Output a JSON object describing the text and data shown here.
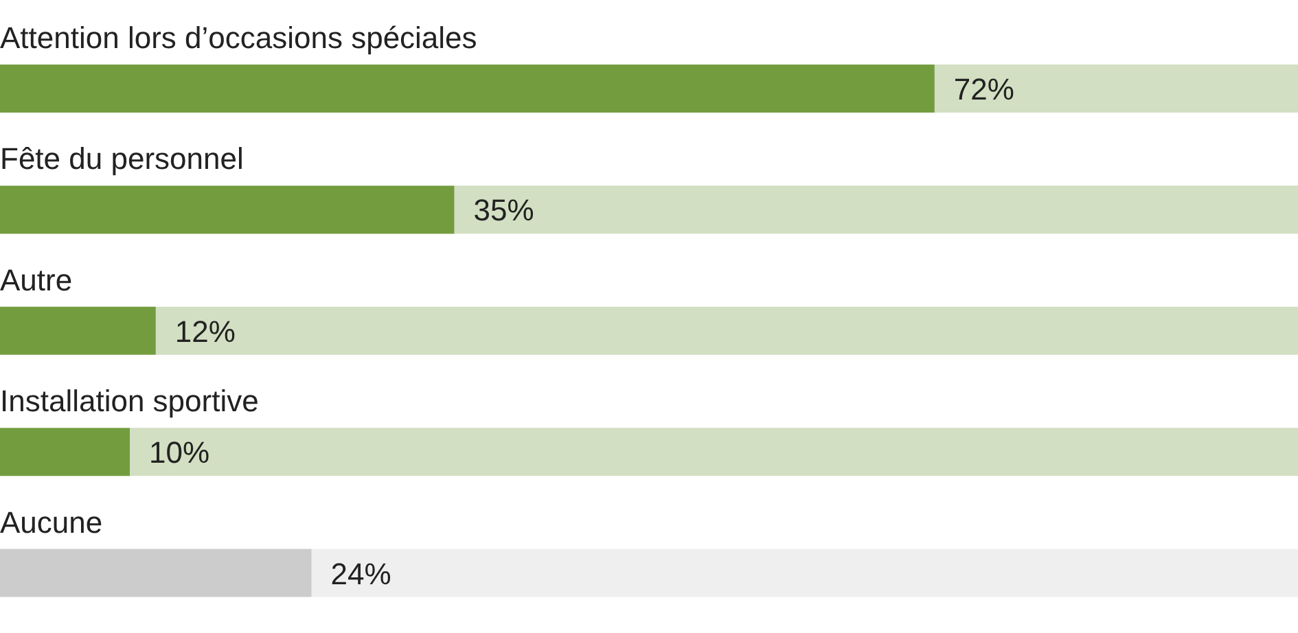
{
  "chart_data": {
    "type": "bar",
    "orientation": "horizontal",
    "categories": [
      "Attention lors d’occasions spéciales",
      "Fête du personnel",
      "Autre",
      "Installation sportive",
      "Aucune"
    ],
    "values": [
      72,
      35,
      12,
      10,
      24
    ],
    "colors": [
      "#739c3f",
      "#739c3f",
      "#739c3f",
      "#739c3f",
      "#cccccc"
    ],
    "value_labels": [
      "72%",
      "35%",
      "12%",
      "10%",
      "24%"
    ],
    "xlim": [
      0,
      100
    ],
    "tick_labels": false
  }
}
